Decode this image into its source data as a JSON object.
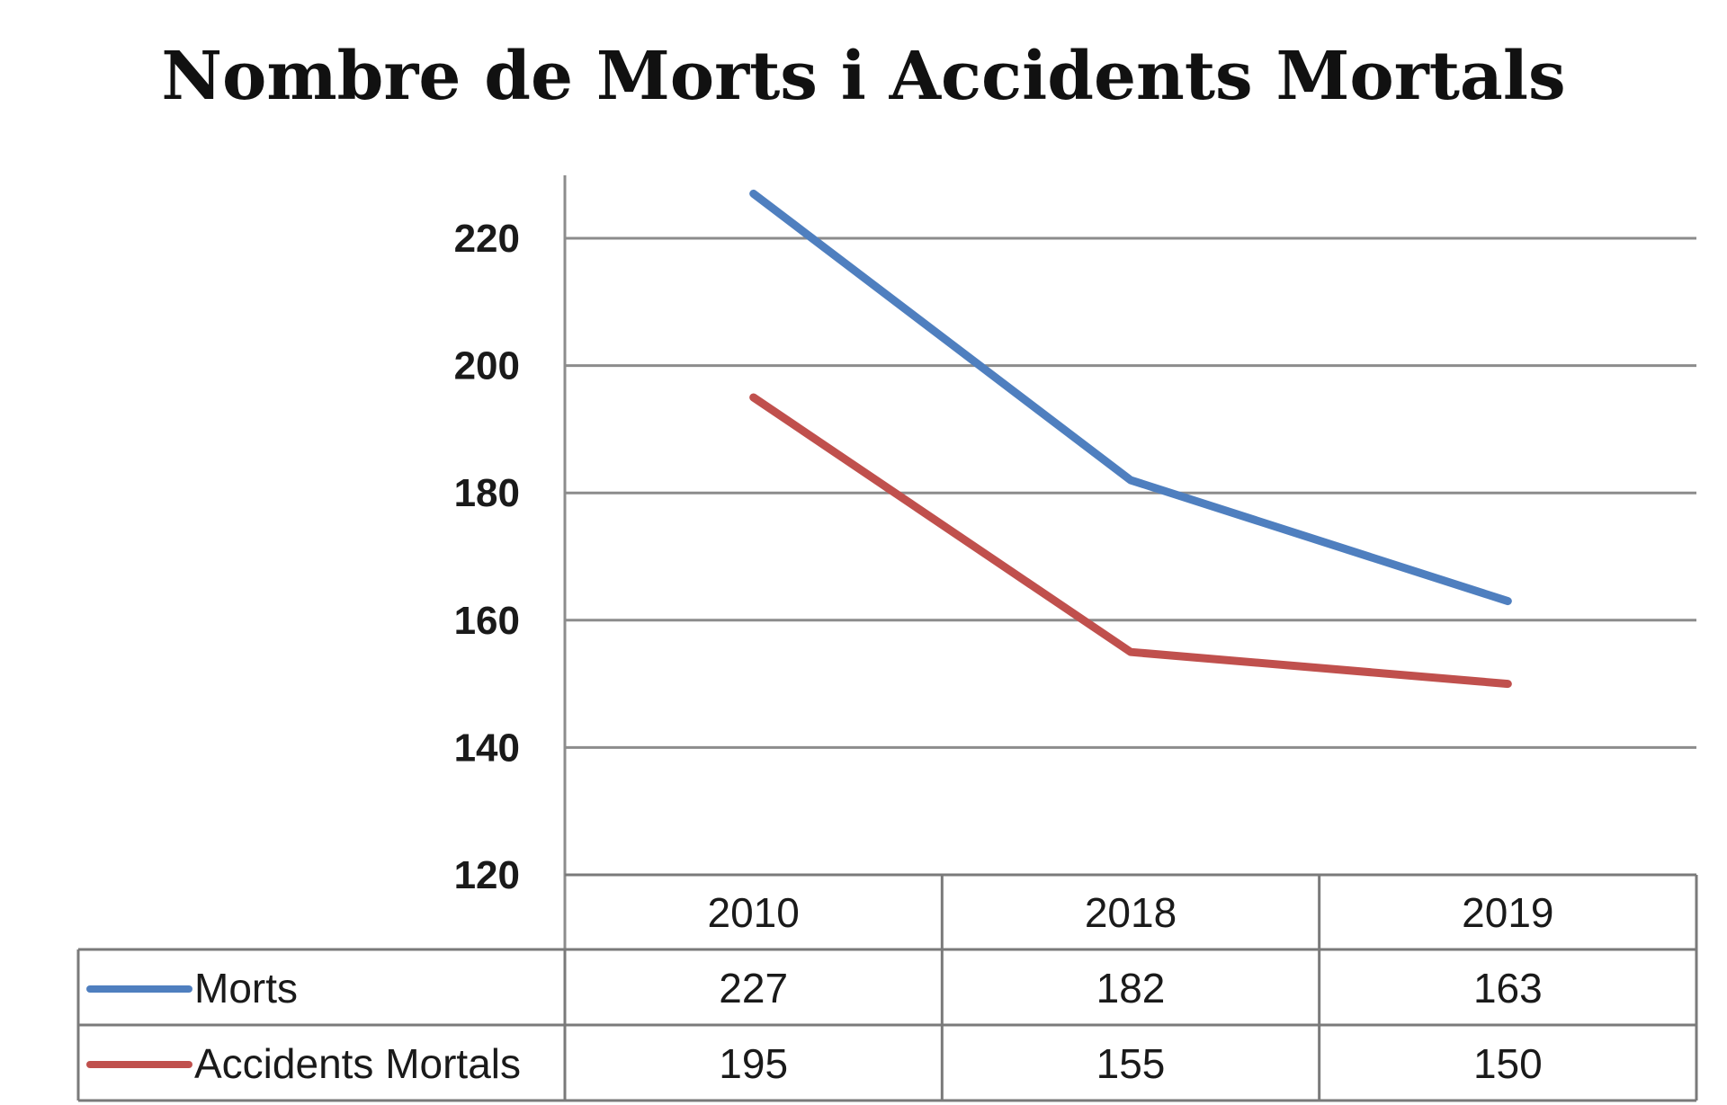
{
  "chart_data": {
    "type": "line",
    "title": "Nombre de Morts i Accidents Mortals",
    "categories": [
      "2010",
      "2018",
      "2019"
    ],
    "ylim": [
      120,
      220
    ],
    "yticks": [
      220,
      200,
      180,
      160,
      140,
      120
    ],
    "grid": true,
    "legend": "data-table-below",
    "series": [
      {
        "name": "Morts",
        "values": [
          227,
          182,
          163
        ],
        "labels": [
          "227",
          "182",
          "163"
        ],
        "color": "#4f7fbf"
      },
      {
        "name": "Accidents Mortals",
        "values": [
          195,
          155,
          150
        ],
        "labels": [
          "195",
          "155",
          "150"
        ],
        "color": "#c0504d"
      }
    ]
  }
}
